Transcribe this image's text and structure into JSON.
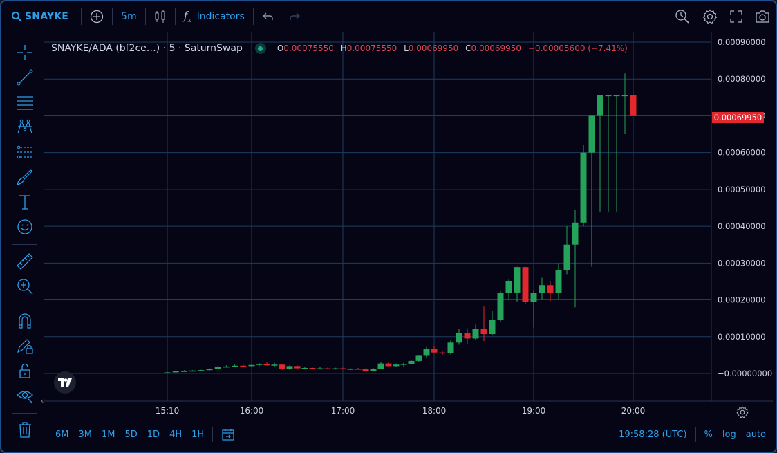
{
  "topbar": {
    "logo": "SNAYKE",
    "interval": "5m",
    "indicators_label": "Indicators",
    "add_symbol_icon": "plus-circle-icon",
    "candles_icon": "candles-icon",
    "fx_icon": "fx-icon",
    "undo_icon": "undo-icon",
    "redo_icon": "redo-icon",
    "snapshot_search_icon": "quick-search-icon",
    "settings_icon": "gear-icon",
    "fullscreen_icon": "fullscreen-icon",
    "camera_icon": "camera-icon"
  },
  "legend": {
    "symbol": "SNAYKE/ADA (bf2ce…) · 5 · SaturnSwap",
    "o_label": "O",
    "o_value": "0.00075550",
    "h_label": "H",
    "h_value": "0.00075550",
    "l_label": "L",
    "l_value": "0.00069950",
    "c_label": "C",
    "c_value": "0.00069950",
    "change": "−0.00005600 (−7.41%)"
  },
  "left_tools": [
    "crosshair-icon",
    "trend-line-icon",
    "horizontal-lines-icon",
    "pattern-icon",
    "fib-icon",
    "brush-icon",
    "text-icon",
    "emoji-icon",
    "ruler-icon",
    "zoom-in-icon",
    "magnet-icon",
    "lock-drawing-icon",
    "unlock-icon",
    "eye-icon",
    "trash-icon"
  ],
  "colors": {
    "up": "#26a35a",
    "down": "#e0282e",
    "grid": "#1e3d5f",
    "axis_text": "#d1d4dc",
    "accent": "#2ea0e8",
    "background": "#050516"
  },
  "chart_data": {
    "type": "candlestick",
    "symbol": "SNAYKE/ADA",
    "interval": "5",
    "y_tick_labels": [
      "0.00090000",
      "0.00080000",
      "0.00070000",
      "0.00060000",
      "0.00050000",
      "0.00040000",
      "0.00030000",
      "0.00020000",
      "0.00010000",
      "−0.00000000"
    ],
    "y_ticks": [
      0.0009,
      0.0008,
      0.0007,
      0.0006,
      0.0005,
      0.0004,
      0.0003,
      0.0002,
      0.0001,
      0
    ],
    "ylim": [
      -8e-05,
      0.00096
    ],
    "x_tick_labels": [
      "15:10",
      "16:00",
      "17:00",
      "18:00",
      "19:00",
      "20:00"
    ],
    "last_price_label": "0.00069950",
    "grid": true,
    "candles": [
      {
        "t": "15:10",
        "o": 2e-06,
        "h": 4e-06,
        "l": 1e-06,
        "c": 3e-06
      },
      {
        "t": "15:15",
        "o": 3e-06,
        "h": 8e-06,
        "l": 2e-06,
        "c": 6e-06
      },
      {
        "t": "15:20",
        "o": 6e-06,
        "h": 9e-06,
        "l": 5e-06,
        "c": 7e-06
      },
      {
        "t": "15:25",
        "o": 7e-06,
        "h": 9e-06,
        "l": 6e-06,
        "c": 8e-06
      },
      {
        "t": "15:30",
        "o": 8e-06,
        "h": 1e-05,
        "l": 7e-06,
        "c": 9e-06
      },
      {
        "t": "15:35",
        "o": 9e-06,
        "h": 1.4e-05,
        "l": 8e-06,
        "c": 1.2e-05
      },
      {
        "t": "15:40",
        "o": 1.2e-05,
        "h": 2e-05,
        "l": 1.1e-05,
        "c": 1.8e-05
      },
      {
        "t": "15:45",
        "o": 1.8e-05,
        "h": 2.2e-05,
        "l": 1.6e-05,
        "c": 1.9e-05
      },
      {
        "t": "15:50",
        "o": 1.9e-05,
        "h": 2.4e-05,
        "l": 1.7e-05,
        "c": 2.1e-05
      },
      {
        "t": "15:55",
        "o": 2.1e-05,
        "h": 2.6e-05,
        "l": 1.8e-05,
        "c": 2e-05
      },
      {
        "t": "16:00",
        "o": 2e-05,
        "h": 2.5e-05,
        "l": 1.7e-05,
        "c": 2.3e-05
      },
      {
        "t": "16:05",
        "o": 2.3e-05,
        "h": 2.8e-05,
        "l": 2e-05,
        "c": 2.6e-05
      },
      {
        "t": "16:10",
        "o": 2.6e-05,
        "h": 3.1e-05,
        "l": 2.1e-05,
        "c": 2.2e-05
      },
      {
        "t": "16:15",
        "o": 2.2e-05,
        "h": 2.9e-05,
        "l": 1.8e-05,
        "c": 2.4e-05
      },
      {
        "t": "16:20",
        "o": 2.4e-05,
        "h": 2.6e-05,
        "l": 1e-05,
        "c": 1.2e-05
      },
      {
        "t": "16:25",
        "o": 1.2e-05,
        "h": 2.2e-05,
        "l": 1e-05,
        "c": 2e-05
      },
      {
        "t": "16:30",
        "o": 2e-05,
        "h": 2.2e-05,
        "l": 1.3e-05,
        "c": 1.4e-05
      },
      {
        "t": "16:35",
        "o": 1.4e-05,
        "h": 1.7e-05,
        "l": 1.1e-05,
        "c": 1.5e-05
      },
      {
        "t": "16:40",
        "o": 1.5e-05,
        "h": 1.6e-05,
        "l": 1.2e-05,
        "c": 1.3e-05
      },
      {
        "t": "16:45",
        "o": 1.3e-05,
        "h": 1.7e-05,
        "l": 1.1e-05,
        "c": 1.4e-05
      },
      {
        "t": "16:50",
        "o": 1.4e-05,
        "h": 1.6e-05,
        "l": 1.2e-05,
        "c": 1.3e-05
      },
      {
        "t": "16:55",
        "o": 1.3e-05,
        "h": 1.6e-05,
        "l": 1e-05,
        "c": 1.4e-05
      },
      {
        "t": "17:00",
        "o": 1.4e-05,
        "h": 1.6e-05,
        "l": 1.1e-05,
        "c": 1.2e-05
      },
      {
        "t": "17:05",
        "o": 1.2e-05,
        "h": 1.4e-05,
        "l": 9e-06,
        "c": 1.3e-05
      },
      {
        "t": "17:10",
        "o": 1.3e-05,
        "h": 1.5e-05,
        "l": 1.1e-05,
        "c": 1.2e-05
      },
      {
        "t": "17:15",
        "o": 1.2e-05,
        "h": 1.4e-05,
        "l": 5e-06,
        "c": 7e-06
      },
      {
        "t": "17:20",
        "o": 7e-06,
        "h": 1.5e-05,
        "l": 6e-06,
        "c": 1.3e-05
      },
      {
        "t": "17:25",
        "o": 1.3e-05,
        "h": 3e-05,
        "l": 1.2e-05,
        "c": 2.7e-05
      },
      {
        "t": "17:30",
        "o": 2.7e-05,
        "h": 3e-05,
        "l": 1.7e-05,
        "c": 2e-05
      },
      {
        "t": "17:35",
        "o": 2e-05,
        "h": 2.7e-05,
        "l": 1.8e-05,
        "c": 2.4e-05
      },
      {
        "t": "17:40",
        "o": 2.4e-05,
        "h": 2.9e-05,
        "l": 1.9e-05,
        "c": 2.6e-05
      },
      {
        "t": "17:45",
        "o": 2.6e-05,
        "h": 3.6e-05,
        "l": 2.4e-05,
        "c": 3.4e-05
      },
      {
        "t": "17:50",
        "o": 3.4e-05,
        "h": 5e-05,
        "l": 3e-05,
        "c": 4.8e-05
      },
      {
        "t": "17:55",
        "o": 4.8e-05,
        "h": 7.2e-05,
        "l": 4.2e-05,
        "c": 6.7e-05
      },
      {
        "t": "18:00",
        "o": 6.7e-05,
        "h": 7.4e-05,
        "l": 5.3e-05,
        "c": 5.7e-05
      },
      {
        "t": "18:05",
        "o": 5.7e-05,
        "h": 6.1e-05,
        "l": 5.1e-05,
        "c": 5.5e-05
      },
      {
        "t": "18:10",
        "o": 5.5e-05,
        "h": 9e-05,
        "l": 5.2e-05,
        "c": 8.4e-05
      },
      {
        "t": "18:15",
        "o": 8.4e-05,
        "h": 0.00012,
        "l": 7.8e-05,
        "c": 0.00011
      },
      {
        "t": "18:20",
        "o": 0.00011,
        "h": 0.000123,
        "l": 8e-05,
        "c": 9.5e-05
      },
      {
        "t": "18:25",
        "o": 9.5e-05,
        "h": 0.000133,
        "l": 9e-05,
        "c": 0.000121
      },
      {
        "t": "18:30",
        "o": 0.000121,
        "h": 0.000182,
        "l": 8.8e-05,
        "c": 0.000107
      },
      {
        "t": "18:35",
        "o": 0.000107,
        "h": 0.00017,
        "l": 0.000103,
        "c": 0.000146
      },
      {
        "t": "18:40",
        "o": 0.000146,
        "h": 0.000224,
        "l": 0.00014,
        "c": 0.000218
      },
      {
        "t": "18:45",
        "o": 0.000218,
        "h": 0.000255,
        "l": 0.0002,
        "c": 0.00025
      },
      {
        "t": "18:50",
        "o": 0.00022,
        "h": 0.00029,
        "l": 0.000195,
        "c": 0.000289
      },
      {
        "t": "18:55",
        "o": 0.000289,
        "h": 0.00029,
        "l": 0.00019,
        "c": 0.000194
      },
      {
        "t": "19:00",
        "o": 0.000194,
        "h": 0.000225,
        "l": 0.000125,
        "c": 0.000218
      },
      {
        "t": "19:05",
        "o": 0.000218,
        "h": 0.00026,
        "l": 0.0002,
        "c": 0.00024
      },
      {
        "t": "19:10",
        "o": 0.00024,
        "h": 0.00025,
        "l": 0.000196,
        "c": 0.000218
      },
      {
        "t": "19:15",
        "o": 0.000218,
        "h": 0.0003,
        "l": 0.0002,
        "c": 0.00028
      },
      {
        "t": "19:20",
        "o": 0.00028,
        "h": 0.0004,
        "l": 0.00027,
        "c": 0.00035
      },
      {
        "t": "19:25",
        "o": 0.00035,
        "h": 0.000445,
        "l": 0.00018,
        "c": 0.00041
      },
      {
        "t": "19:30",
        "o": 0.00041,
        "h": 0.00062,
        "l": 0.0004,
        "c": 0.0006
      },
      {
        "t": "19:35",
        "o": 0.0006,
        "h": 0.0007,
        "l": 0.00029,
        "c": 0.0007
      },
      {
        "t": "19:40",
        "o": 0.0007,
        "h": 0.000756,
        "l": 0.00044,
        "c": 0.000756
      },
      {
        "t": "19:45",
        "o": 0.000756,
        "h": 0.000756,
        "l": 0.00044,
        "c": 0.000756
      },
      {
        "t": "19:50",
        "o": 0.000756,
        "h": 0.000756,
        "l": 0.00044,
        "c": 0.000756
      },
      {
        "t": "19:55",
        "o": 0.000756,
        "h": 0.000815,
        "l": 0.00065,
        "c": 0.000756
      },
      {
        "t": "20:00",
        "o": 0.0007555,
        "h": 0.0007555,
        "l": 0.0006995,
        "c": 0.0006995
      }
    ]
  },
  "bottombar": {
    "ranges": [
      "6M",
      "3M",
      "1M",
      "5D",
      "1D",
      "4H",
      "1H"
    ],
    "goto_date_icon": "calendar-goto-icon",
    "time": "19:58:28 (UTC)",
    "percent": "%",
    "log": "log",
    "auto": "auto"
  }
}
